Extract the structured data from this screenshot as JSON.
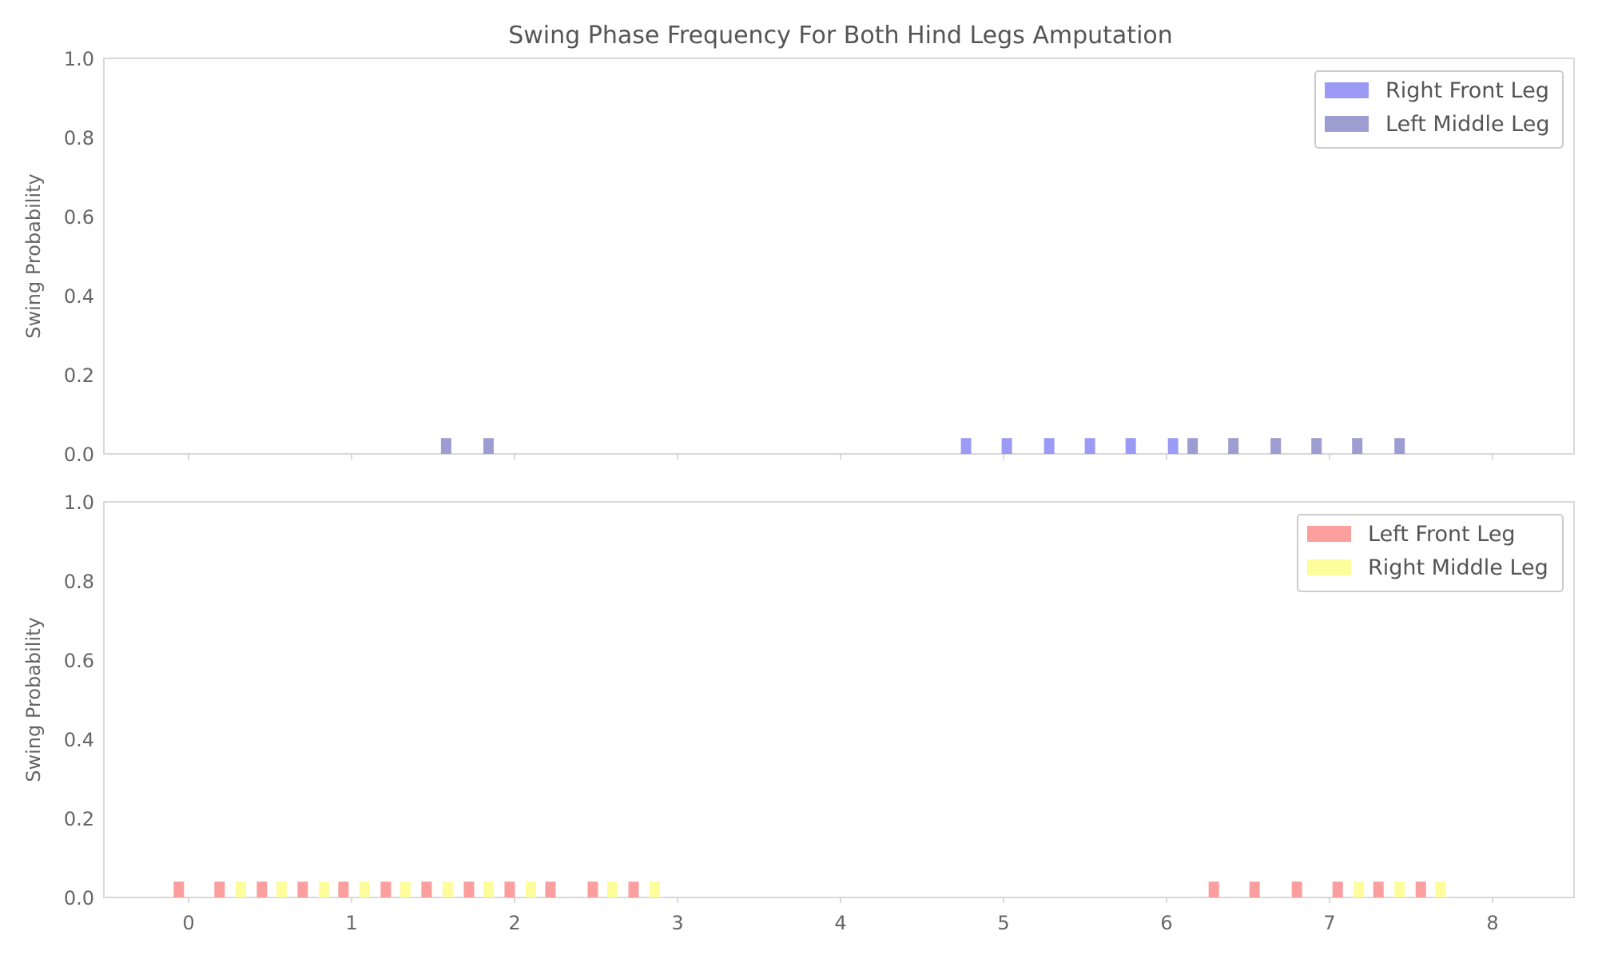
{
  "chart_data": {
    "type": "bar",
    "title": "Swing Phase Frequency For Both Hind Legs Amputation",
    "colors": {
      "right_front": "#9b9bf5",
      "left_middle": "#9d9dd2",
      "left_front": "#fb9e9e",
      "right_middle": "#fdfd9b"
    },
    "panels": [
      {
        "ylabel": "Swing Probability",
        "ylim": [
          0,
          1.0
        ],
        "yticks": [
          "0.0",
          "0.2",
          "0.4",
          "0.6",
          "0.8",
          "1.0"
        ],
        "xlim": [
          -0.52,
          8.5
        ],
        "xticks": [],
        "legend_position": "top-right",
        "series": [
          {
            "name": "Right Front Leg",
            "color_key": "right_front",
            "x": [
              4.77,
              5.02,
              5.28,
              5.53,
              5.78,
              6.04
            ],
            "values": [
              0.04,
              0.04,
              0.04,
              0.04,
              0.04,
              0.04
            ]
          },
          {
            "name": "Left Middle Leg",
            "color_key": "left_middle",
            "x": [
              1.58,
              1.84,
              6.16,
              6.41,
              6.67,
              6.92,
              7.17,
              7.43
            ],
            "values": [
              0.04,
              0.04,
              0.04,
              0.04,
              0.04,
              0.04,
              0.04,
              0.04
            ]
          }
        ]
      },
      {
        "ylabel": "Swing Probability",
        "ylim": [
          0,
          1.0
        ],
        "yticks": [
          "0.0",
          "0.2",
          "0.4",
          "0.6",
          "0.8",
          "1.0"
        ],
        "xlim": [
          -0.52,
          8.5
        ],
        "xticks": [
          "0",
          "1",
          "2",
          "3",
          "4",
          "5",
          "6",
          "7",
          "8"
        ],
        "legend_position": "top-right",
        "series": [
          {
            "name": "Left Front Leg",
            "color_key": "left_front",
            "x": [
              -0.06,
              0.19,
              0.45,
              0.7,
              0.95,
              1.21,
              1.46,
              1.72,
              1.97,
              2.22,
              2.48,
              2.73,
              6.29,
              6.54,
              6.8,
              7.05,
              7.3,
              7.56
            ],
            "values": [
              0.04,
              0.04,
              0.04,
              0.04,
              0.04,
              0.04,
              0.04,
              0.04,
              0.04,
              0.04,
              0.04,
              0.04,
              0.04,
              0.04,
              0.04,
              0.04,
              0.04,
              0.04
            ]
          },
          {
            "name": "Right Middle Leg",
            "color_key": "right_middle",
            "x": [
              0.32,
              0.57,
              0.83,
              1.08,
              1.33,
              1.59,
              1.84,
              2.1,
              2.6,
              2.86,
              7.18,
              7.43,
              7.68
            ],
            "values": [
              0.04,
              0.04,
              0.04,
              0.04,
              0.04,
              0.04,
              0.04,
              0.04,
              0.04,
              0.04,
              0.04,
              0.04,
              0.04
            ]
          }
        ]
      }
    ]
  }
}
